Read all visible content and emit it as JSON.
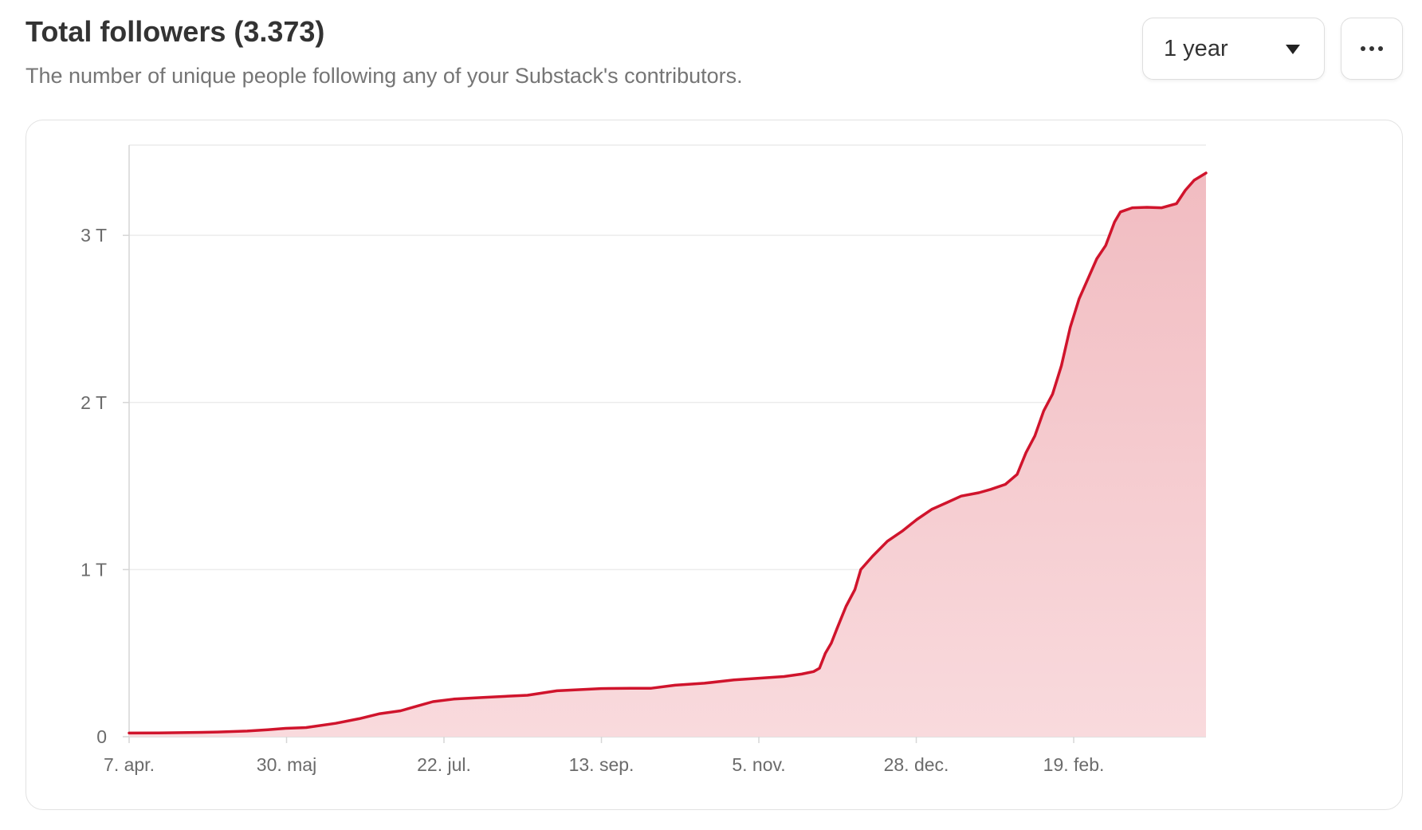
{
  "header": {
    "title": "Total followers (3.373)",
    "subtitle": "The number of unique people following any of your Substack's contributors."
  },
  "controls": {
    "range_select": "1 year",
    "caret_icon": "caret-down-icon",
    "more_icon": "more-horizontal-icon"
  },
  "colors": {
    "line": "#d0142c",
    "fill_top": "#f1bcc1",
    "fill_bottom": "#f9dadd",
    "grid": "#ececec",
    "axis": "#d6d6d6"
  },
  "chart_data": {
    "type": "area",
    "title": "Total followers (3.373)",
    "xlabel": "",
    "ylabel": "",
    "x_tick_labels": [
      "7. apr.",
      "30. maj",
      "22. jul.",
      "13. sep.",
      "5. nov.",
      "28. dec.",
      "19. feb."
    ],
    "y_tick_labels": [
      "0",
      "1 T",
      "2 T",
      "3 T"
    ],
    "y_ticks": [
      0,
      1000,
      2000,
      3000
    ],
    "ylim": [
      0,
      3540
    ],
    "xlim": [
      0,
      365
    ],
    "grid": true,
    "series": [
      {
        "values": [
          [
            0,
            22
          ],
          [
            10,
            23
          ],
          [
            20,
            25
          ],
          [
            30,
            28
          ],
          [
            40,
            34
          ],
          [
            47,
            42
          ],
          [
            53,
            50
          ],
          [
            60,
            55
          ],
          [
            70,
            80
          ],
          [
            78,
            108
          ],
          [
            85,
            138
          ],
          [
            92,
            155
          ],
          [
            98,
            185
          ],
          [
            103,
            210
          ],
          [
            110,
            225
          ],
          [
            120,
            235
          ],
          [
            135,
            248
          ],
          [
            145,
            275
          ],
          [
            160,
            288
          ],
          [
            170,
            290
          ],
          [
            177,
            290
          ],
          [
            185,
            308
          ],
          [
            195,
            320
          ],
          [
            205,
            340
          ],
          [
            215,
            352
          ],
          [
            222,
            360
          ],
          [
            228,
            375
          ],
          [
            232,
            390
          ],
          [
            234,
            410
          ],
          [
            236,
            500
          ],
          [
            238,
            560
          ],
          [
            240,
            650
          ],
          [
            243,
            780
          ],
          [
            246,
            880
          ],
          [
            248,
            1000
          ],
          [
            252,
            1080
          ],
          [
            257,
            1170
          ],
          [
            262,
            1230
          ],
          [
            267,
            1300
          ],
          [
            272,
            1360
          ],
          [
            277,
            1400
          ],
          [
            282,
            1440
          ],
          [
            288,
            1460
          ],
          [
            292,
            1480
          ],
          [
            297,
            1510
          ],
          [
            301,
            1570
          ],
          [
            304,
            1700
          ],
          [
            307,
            1800
          ],
          [
            310,
            1950
          ],
          [
            313,
            2050
          ],
          [
            316,
            2220
          ],
          [
            319,
            2450
          ],
          [
            322,
            2620
          ],
          [
            325,
            2740
          ],
          [
            328,
            2860
          ],
          [
            331,
            2940
          ],
          [
            334,
            3080
          ],
          [
            336,
            3140
          ],
          [
            340,
            3165
          ],
          [
            345,
            3168
          ],
          [
            350,
            3165
          ],
          [
            355,
            3190
          ],
          [
            358,
            3270
          ],
          [
            361,
            3330
          ],
          [
            365,
            3373
          ]
        ]
      }
    ]
  }
}
